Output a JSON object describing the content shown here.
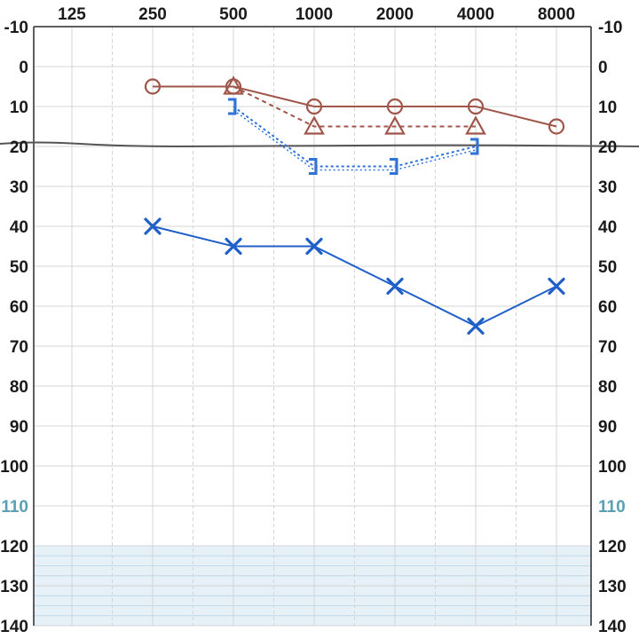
{
  "chart_data": {
    "type": "line",
    "title": "",
    "xlabel": "",
    "ylabel": "",
    "x_scale": "log2",
    "y_inverted": true,
    "x_ticks": [
      125,
      250,
      500,
      1000,
      2000,
      4000,
      8000
    ],
    "x_tick_labels": [
      "125",
      "250",
      "500",
      "1000",
      "2000",
      "4000",
      "8000"
    ],
    "y_ticks": [
      -10,
      0,
      10,
      20,
      30,
      40,
      50,
      60,
      70,
      80,
      90,
      100,
      110,
      120,
      130,
      140
    ],
    "y_tick_labels": [
      "-10",
      "0",
      "10",
      "20",
      "30",
      "40",
      "50",
      "60",
      "70",
      "80",
      "90",
      "100",
      "110",
      "120",
      "130",
      "140"
    ],
    "ylim": [
      -10,
      140
    ],
    "grid": true,
    "reference_line": {
      "y": 20,
      "color": "#555555"
    },
    "shaded_region": {
      "y_from": 120,
      "y_to": 140,
      "color": "#cfe4f0"
    },
    "series": [
      {
        "key": "right-air",
        "marker": "circle",
        "line": "solid",
        "color": "#a0564a",
        "x": [
          250,
          500,
          1000,
          2000,
          4000,
          8000
        ],
        "y": [
          5,
          5,
          10,
          10,
          10,
          15
        ]
      },
      {
        "key": "right-bone",
        "marker": "triangle",
        "line": "dashed",
        "color": "#a0564a",
        "x": [
          500,
          1000,
          2000,
          4000
        ],
        "y": [
          5,
          15,
          15,
          15
        ]
      },
      {
        "key": "left-air",
        "marker": "x",
        "line": "solid",
        "color": "#1f5fc8",
        "x": [
          250,
          500,
          1000,
          2000,
          4000,
          8000
        ],
        "y": [
          40,
          45,
          45,
          55,
          65,
          55
        ]
      },
      {
        "key": "left-bone",
        "marker": "bracket",
        "line": "dotted",
        "color": "#2f72d8",
        "x": [
          500,
          1000,
          2000,
          4000
        ],
        "y": [
          10,
          25,
          25,
          20
        ]
      }
    ]
  }
}
